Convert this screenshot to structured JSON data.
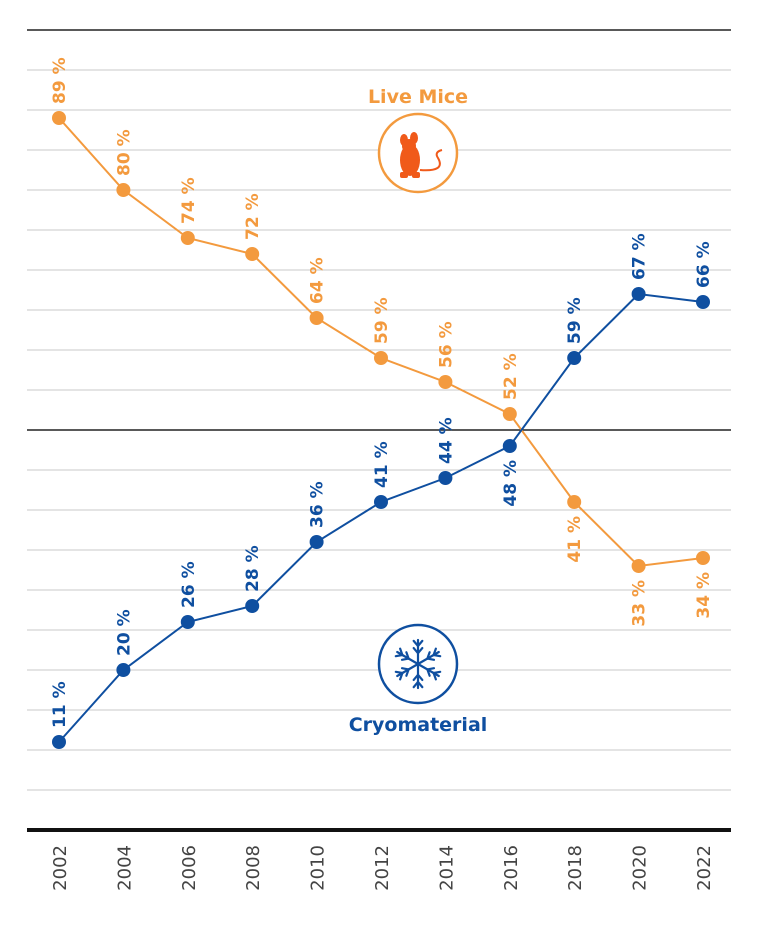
{
  "chart_data": {
    "type": "line",
    "title": "",
    "xlabel": "",
    "ylabel": "",
    "x": [
      "2002",
      "2004",
      "2006",
      "2008",
      "2010",
      "2012",
      "2014",
      "2016",
      "2018",
      "2020",
      "2022"
    ],
    "ylim": [
      0,
      100
    ],
    "grid": true,
    "series": [
      {
        "name": "Live Mice",
        "color": "#f39a3e",
        "values": [
          89,
          80,
          74,
          72,
          64,
          59,
          56,
          52,
          41,
          33,
          34
        ],
        "labels": [
          "89 %",
          "80 %",
          "74 %",
          "72 %",
          "64 %",
          "59 %",
          "56 %",
          "52 %",
          "41 %",
          "33 %",
          "34 %"
        ],
        "icon": "mouse-icon"
      },
      {
        "name": "Cryomaterial",
        "color": "#0f4fa0",
        "values": [
          11,
          20,
          26,
          28,
          36,
          41,
          44,
          48,
          59,
          67,
          66
        ],
        "labels": [
          "11 %",
          "20 %",
          "26 %",
          "28 %",
          "36 %",
          "41 %",
          "44 %",
          "48 %",
          "59 %",
          "67 %",
          "66 %"
        ],
        "icon": "snowflake-icon"
      }
    ],
    "colors": {
      "grid": "#c8c8c8",
      "axis": "#111111",
      "mid_line": "#222222",
      "tick_text": "#444444"
    }
  }
}
